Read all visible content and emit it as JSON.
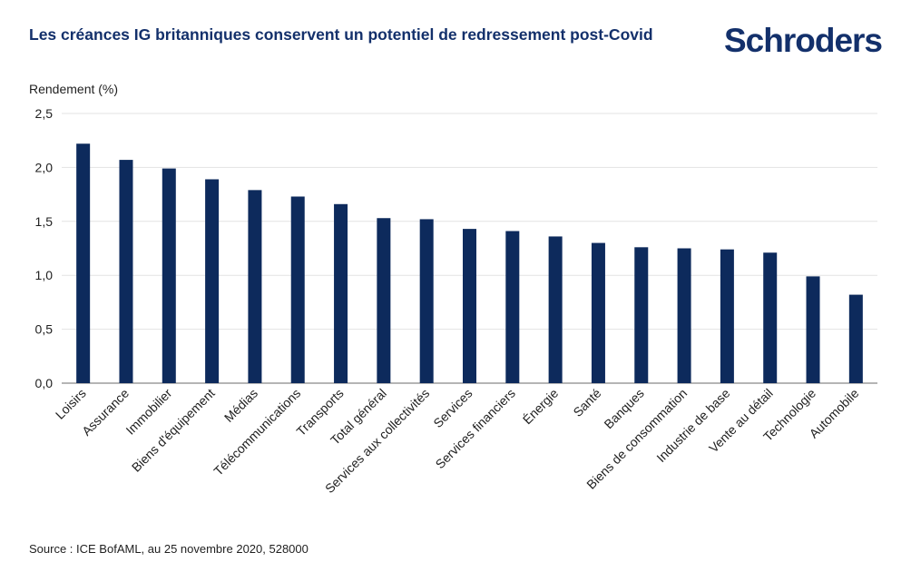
{
  "title": "Les créances IG britanniques conservent un potentiel de redressement post-Covid",
  "brand": "Schroders",
  "source": "Source : ICE BofAML, au 25 novembre 2020, 528000",
  "colors": {
    "bar": "#0d2a5c",
    "title": "#13306b",
    "grid": "#e3e3e3"
  },
  "chart_data": {
    "type": "bar",
    "ylabel": "Rendement (%)",
    "ylim": [
      0,
      2.5
    ],
    "yticks": [
      "0,0",
      "0,5",
      "1,0",
      "1,5",
      "2,0",
      "2,5"
    ],
    "grid": true,
    "categories": [
      "Loisirs",
      "Assurance",
      "Immobilier",
      "Biens d'équipement",
      "Médias",
      "Télécommunications",
      "Transports",
      "Total général",
      "Services aux collectivités",
      "Services",
      "Services financiers",
      "Énergie",
      "Santé",
      "Banques",
      "Biens de consommation",
      "Industrie de base",
      "Vente au détail",
      "Technologie",
      "Automobile"
    ],
    "values": [
      2.22,
      2.07,
      1.99,
      1.89,
      1.79,
      1.73,
      1.66,
      1.53,
      1.52,
      1.43,
      1.41,
      1.36,
      1.3,
      1.26,
      1.25,
      1.24,
      1.21,
      0.99,
      0.82
    ]
  }
}
